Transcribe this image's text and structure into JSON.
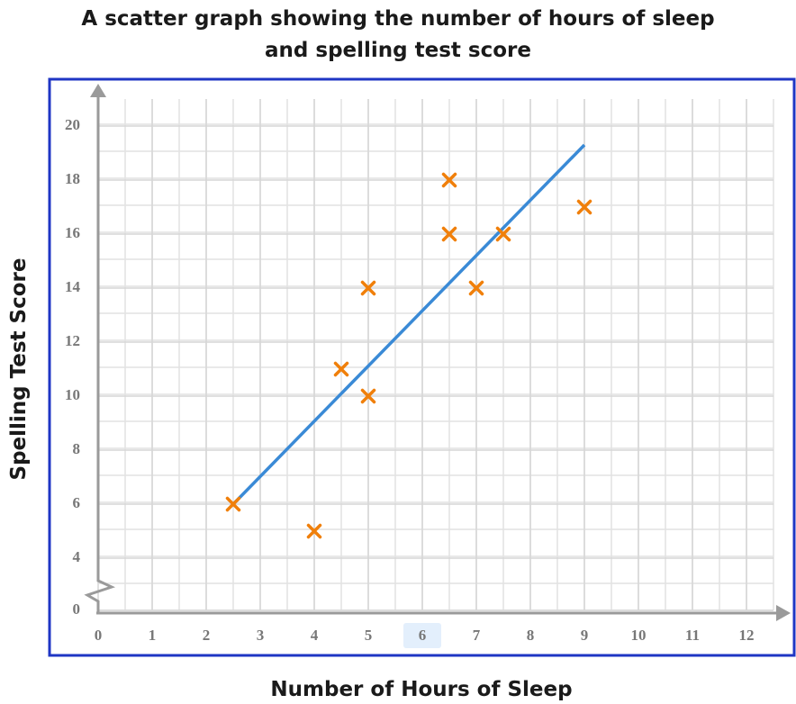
{
  "chart_data": {
    "type": "scatter",
    "title": [
      "A scatter graph showing the number of hours of sleep",
      "and spelling test score"
    ],
    "x_label": "Number of Hours of Sleep",
    "y_label": "Spelling Test Score",
    "series": [
      {
        "x": [
          2.5,
          4,
          4.5,
          5,
          5,
          6.5,
          6.5,
          7,
          7.5,
          9
        ],
        "values": [
          6,
          5,
          11,
          14,
          10,
          18,
          16,
          14,
          16,
          17
        ],
        "color": "#f07f0a"
      }
    ],
    "trend_line": {
      "x": [
        2.5,
        9
      ],
      "y": [
        6,
        19.3
      ],
      "color": "#3a8ad6"
    },
    "xlim": [
      0,
      12.5
    ],
    "ylim": [
      0,
      21
    ],
    "xticks": [
      0,
      1,
      2,
      3,
      4,
      5,
      6,
      7,
      8,
      9,
      10,
      11,
      12
    ],
    "yticks": [
      0,
      4,
      6,
      8,
      10,
      12,
      14,
      16,
      18,
      20
    ],
    "y_axis_break": true,
    "grid": true
  }
}
